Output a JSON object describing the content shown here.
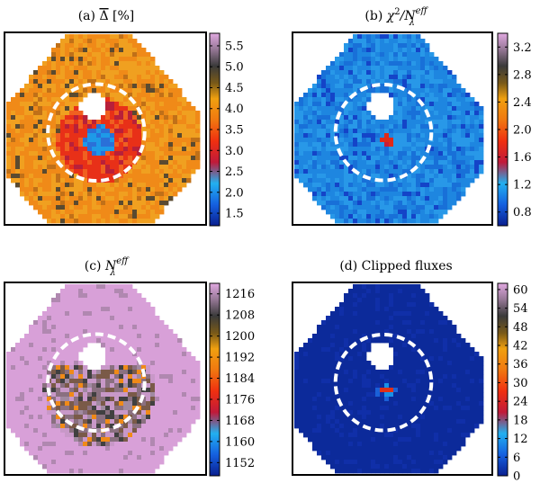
{
  "chart_data": [
    {
      "type": "heatmap",
      "panel": "a",
      "title_prefix": "(a) ",
      "title_symbol": "Δ",
      "title_suffix": " [%]",
      "colorbar_ticks": [
        5.5,
        5.0,
        4.5,
        4.0,
        3.5,
        3.0,
        2.5,
        2.0,
        1.5
      ],
      "colorbar_tick_labels": [
        "5.5",
        "5.0",
        "4.5",
        "4.0",
        "3.5",
        "3.0",
        "2.5",
        "2.0",
        "1.5"
      ],
      "colorbar_range": [
        1.2,
        5.8
      ],
      "overlays": [
        "dashed inner circle",
        "dashed outer circle",
        "white masked hole"
      ]
    },
    {
      "type": "heatmap",
      "panel": "b",
      "title_prefix": "(b) ",
      "title_symbol": "χ",
      "title_sup1": "2",
      "title_mid": "/N",
      "title_sup2": "eff",
      "title_sub": "λ",
      "colorbar_ticks": [
        3.2,
        2.8,
        2.4,
        2.0,
        1.6,
        1.2,
        0.8
      ],
      "colorbar_tick_labels": [
        "3.2",
        "2.8",
        "2.4",
        "2.0",
        "1.6",
        "1.2",
        "0.8"
      ],
      "colorbar_range": [
        0.6,
        3.4
      ],
      "overlays": [
        "dashed inner circle",
        "dashed outer circle",
        "white masked hole"
      ]
    },
    {
      "type": "heatmap",
      "panel": "c",
      "title_prefix": "(c) ",
      "title_symbol": "N",
      "title_sup": "eff",
      "title_sub": "λ",
      "colorbar_ticks": [
        1216,
        1208,
        1200,
        1192,
        1184,
        1176,
        1168,
        1160,
        1152
      ],
      "colorbar_tick_labels": [
        "1216",
        "1208",
        "1200",
        "1192",
        "1184",
        "1176",
        "1168",
        "1160",
        "1152"
      ],
      "colorbar_range": [
        1147,
        1220
      ],
      "overlays": [
        "dashed inner circle",
        "dashed outer circle",
        "white masked hole"
      ]
    },
    {
      "type": "heatmap",
      "panel": "d",
      "title": "(d) Clipped fluxes",
      "colorbar_ticks": [
        60,
        54,
        48,
        42,
        36,
        30,
        24,
        18,
        12,
        6,
        0
      ],
      "colorbar_tick_labels": [
        "60",
        "54",
        "48",
        "42",
        "36",
        "30",
        "24",
        "18",
        "12",
        "6",
        "0"
      ],
      "colorbar_range": [
        0,
        62
      ],
      "overlays": [
        "dashed inner circle",
        "dashed outer circle",
        "white masked hole"
      ]
    }
  ]
}
